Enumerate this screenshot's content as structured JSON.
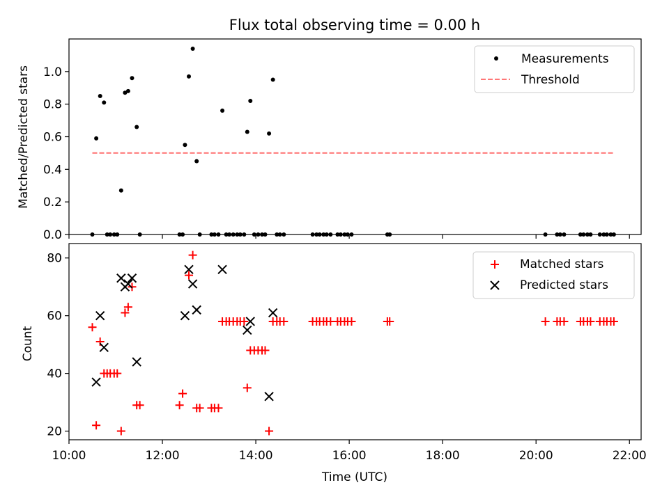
{
  "chart_data": [
    {
      "type": "scatter",
      "title": "Flux total observing time = 0.00 h",
      "xlabel": "",
      "ylabel": "Matched/Predicted stars",
      "xlim": [
        "10:00",
        "22:15"
      ],
      "ylim": [
        0,
        1.2
      ],
      "yticks": [
        "0.0",
        "0.2",
        "0.4",
        "0.6",
        "0.8",
        "1.0"
      ],
      "legend_position": "top-right",
      "series": [
        {
          "name": "Measurements",
          "marker": "dot",
          "color": "#000000",
          "points": [
            [
              "10:35",
              0.59
            ],
            [
              "10:40",
              0.85
            ],
            [
              "10:45",
              0.81
            ],
            [
              "11:07",
              0.27
            ],
            [
              "11:12",
              0.87
            ],
            [
              "11:16",
              0.88
            ],
            [
              "11:21",
              0.96
            ],
            [
              "11:27",
              0.66
            ],
            [
              "12:29",
              0.55
            ],
            [
              "12:34",
              0.97
            ],
            [
              "12:39",
              1.14
            ],
            [
              "12:44",
              0.45
            ],
            [
              "13:17",
              0.76
            ],
            [
              "13:49",
              0.63
            ],
            [
              "13:53",
              0.82
            ],
            [
              "14:17",
              0.62
            ],
            [
              "14:22",
              0.95
            ],
            [
              "10:30",
              0
            ],
            [
              "10:49",
              0
            ],
            [
              "10:53",
              0
            ],
            [
              "10:58",
              0
            ],
            [
              "11:02",
              0
            ],
            [
              "11:31",
              0
            ],
            [
              "12:22",
              0
            ],
            [
              "12:26",
              0
            ],
            [
              "12:48",
              0
            ],
            [
              "13:03",
              0
            ],
            [
              "13:07",
              0
            ],
            [
              "13:12",
              0
            ],
            [
              "13:22",
              0
            ],
            [
              "13:26",
              0
            ],
            [
              "13:31",
              0
            ],
            [
              "13:36",
              0
            ],
            [
              "13:40",
              0
            ],
            [
              "13:45",
              0
            ],
            [
              "13:58",
              0
            ],
            [
              "14:03",
              0
            ],
            [
              "14:08",
              0
            ],
            [
              "14:12",
              0
            ],
            [
              "14:27",
              0
            ],
            [
              "14:31",
              0
            ],
            [
              "14:36",
              0
            ],
            [
              "15:13",
              0
            ],
            [
              "15:18",
              0
            ],
            [
              "15:22",
              0
            ],
            [
              "15:27",
              0
            ],
            [
              "15:31",
              0
            ],
            [
              "15:36",
              0
            ],
            [
              "15:45",
              0
            ],
            [
              "15:49",
              0
            ],
            [
              "15:54",
              0
            ],
            [
              "15:58",
              0
            ],
            [
              "16:03",
              0
            ],
            [
              "16:49",
              0
            ],
            [
              "16:52",
              0
            ],
            [
              "20:12",
              0
            ],
            [
              "20:27",
              0
            ],
            [
              "20:31",
              0
            ],
            [
              "20:36",
              0
            ],
            [
              "20:57",
              0
            ],
            [
              "21:01",
              0
            ],
            [
              "21:06",
              0
            ],
            [
              "21:10",
              0
            ],
            [
              "21:22",
              0
            ],
            [
              "21:27",
              0
            ],
            [
              "21:31",
              0
            ],
            [
              "21:36",
              0
            ],
            [
              "21:40",
              0
            ]
          ]
        },
        {
          "name": "Threshold",
          "marker": "dashed-line",
          "color": "#ff7777",
          "points": [
            [
              "10:30",
              0.5
            ],
            [
              "21:40",
              0.5
            ]
          ]
        }
      ]
    },
    {
      "type": "scatter",
      "title": "",
      "xlabel": "Time (UTC)",
      "ylabel": "Count",
      "xlim": [
        "10:00",
        "22:15"
      ],
      "ylim": [
        17,
        85
      ],
      "yticks": [
        "20",
        "40",
        "60",
        "80"
      ],
      "xticks": [
        "10:00",
        "12:00",
        "14:00",
        "16:00",
        "18:00",
        "20:00",
        "22:00"
      ],
      "legend_position": "top-right",
      "series": [
        {
          "name": "Matched stars",
          "marker": "plus",
          "color": "#ff0000",
          "points": [
            [
              "10:30",
              56
            ],
            [
              "10:35",
              22
            ],
            [
              "10:40",
              51
            ],
            [
              "10:45",
              40
            ],
            [
              "10:49",
              40
            ],
            [
              "10:53",
              40
            ],
            [
              "10:58",
              40
            ],
            [
              "11:02",
              40
            ],
            [
              "11:07",
              20
            ],
            [
              "11:12",
              61
            ],
            [
              "11:16",
              63
            ],
            [
              "11:21",
              70
            ],
            [
              "11:27",
              29
            ],
            [
              "11:31",
              29
            ],
            [
              "12:22",
              29
            ],
            [
              "12:26",
              33
            ],
            [
              "12:34",
              74
            ],
            [
              "12:39",
              81
            ],
            [
              "12:44",
              28
            ],
            [
              "12:48",
              28
            ],
            [
              "13:03",
              28
            ],
            [
              "13:07",
              28
            ],
            [
              "13:12",
              28
            ],
            [
              "13:17",
              58
            ],
            [
              "13:22",
              58
            ],
            [
              "13:26",
              58
            ],
            [
              "13:31",
              58
            ],
            [
              "13:36",
              58
            ],
            [
              "13:40",
              58
            ],
            [
              "13:45",
              58
            ],
            [
              "13:49",
              35
            ],
            [
              "13:53",
              48
            ],
            [
              "13:58",
              48
            ],
            [
              "14:03",
              48
            ],
            [
              "14:08",
              48
            ],
            [
              "14:12",
              48
            ],
            [
              "14:17",
              20
            ],
            [
              "14:22",
              58
            ],
            [
              "14:27",
              58
            ],
            [
              "14:31",
              58
            ],
            [
              "14:36",
              58
            ],
            [
              "15:13",
              58
            ],
            [
              "15:18",
              58
            ],
            [
              "15:22",
              58
            ],
            [
              "15:27",
              58
            ],
            [
              "15:31",
              58
            ],
            [
              "15:36",
              58
            ],
            [
              "15:45",
              58
            ],
            [
              "15:49",
              58
            ],
            [
              "15:54",
              58
            ],
            [
              "15:58",
              58
            ],
            [
              "16:03",
              58
            ],
            [
              "16:49",
              58
            ],
            [
              "16:52",
              58
            ],
            [
              "20:12",
              58
            ],
            [
              "20:27",
              58
            ],
            [
              "20:31",
              58
            ],
            [
              "20:36",
              58
            ],
            [
              "20:57",
              58
            ],
            [
              "21:01",
              58
            ],
            [
              "21:06",
              58
            ],
            [
              "21:10",
              58
            ],
            [
              "21:22",
              58
            ],
            [
              "21:27",
              58
            ],
            [
              "21:31",
              58
            ],
            [
              "21:36",
              58
            ],
            [
              "21:40",
              58
            ]
          ]
        },
        {
          "name": "Predicted stars",
          "marker": "x",
          "color": "#000000",
          "points": [
            [
              "10:35",
              37
            ],
            [
              "10:40",
              60
            ],
            [
              "10:45",
              49
            ],
            [
              "11:07",
              73
            ],
            [
              "11:12",
              70
            ],
            [
              "11:16",
              71
            ],
            [
              "11:21",
              73
            ],
            [
              "11:27",
              44
            ],
            [
              "12:29",
              60
            ],
            [
              "12:34",
              76
            ],
            [
              "12:39",
              71
            ],
            [
              "12:44",
              62
            ],
            [
              "13:17",
              76
            ],
            [
              "13:49",
              55
            ],
            [
              "13:53",
              58
            ],
            [
              "14:17",
              32
            ],
            [
              "14:22",
              61
            ]
          ]
        }
      ]
    }
  ]
}
